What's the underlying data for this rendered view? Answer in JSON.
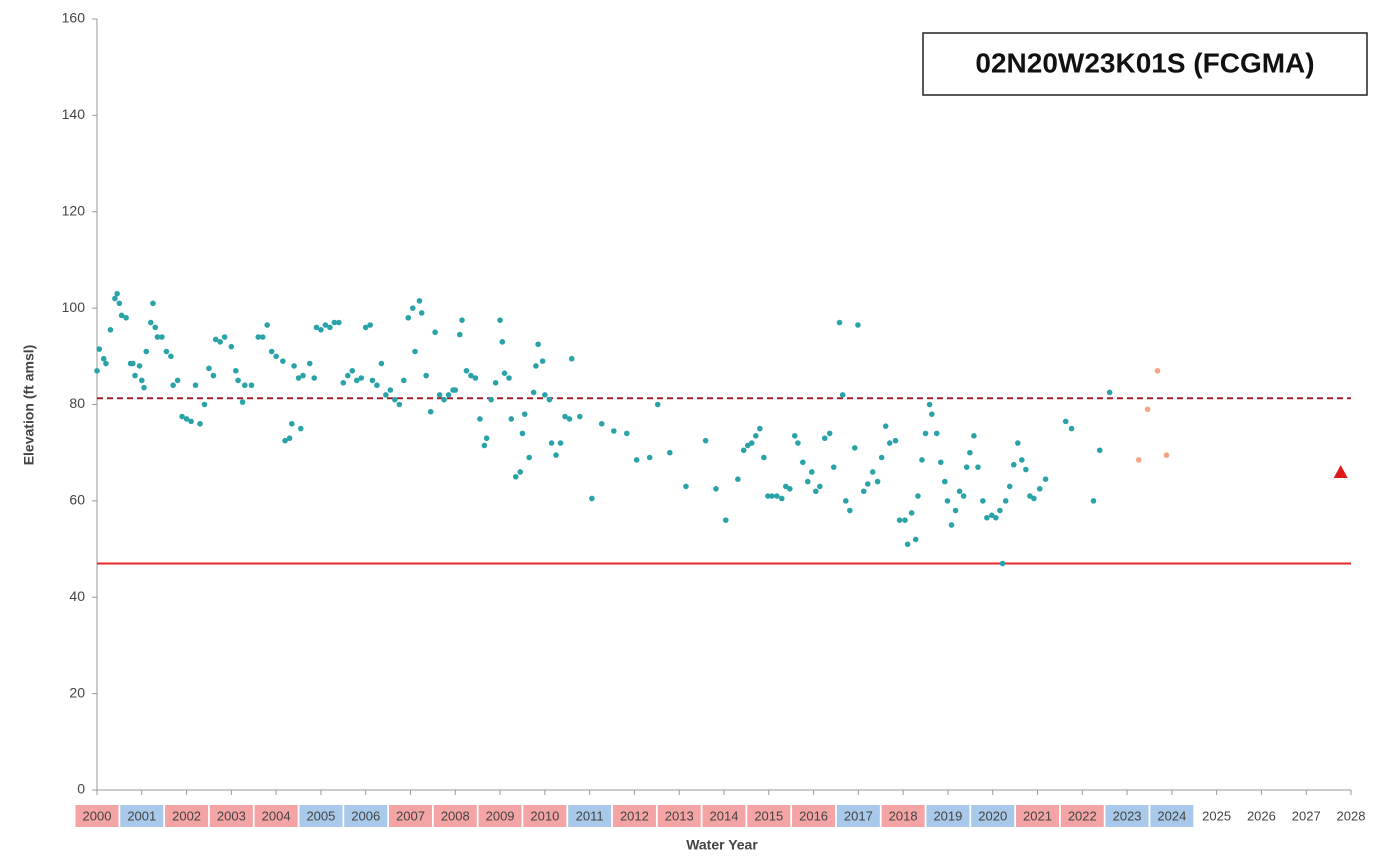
{
  "chart_data": {
    "type": "scatter",
    "title": "02N20W23K01S (FCGMA)",
    "ylabel": "Elevation (ft amsl)",
    "xlabel": "Water Year",
    "xlim": [
      2000,
      2028
    ],
    "ylim": [
      0,
      160
    ],
    "yticks": [
      0,
      20,
      40,
      60,
      80,
      100,
      120,
      140,
      160
    ],
    "xticks": [
      2000,
      2001,
      2002,
      2003,
      2004,
      2005,
      2006,
      2007,
      2008,
      2009,
      2010,
      2011,
      2012,
      2013,
      2014,
      2015,
      2016,
      2017,
      2018,
      2019,
      2020,
      2021,
      2022,
      2023,
      2024,
      2025,
      2026,
      2027,
      2028
    ],
    "xtick_backgrounds": [
      "#f4a4a4",
      "#a9c9ea",
      "#f4a4a4",
      "#f4a4a4",
      "#f4a4a4",
      "#a9c9ea",
      "#a9c9ea",
      "#f4a4a4",
      "#f4a4a4",
      "#f4a4a4",
      "#f4a4a4",
      "#a9c9ea",
      "#f4a4a4",
      "#f4a4a4",
      "#f4a4a4",
      "#f4a4a4",
      "#f4a4a4",
      "#a9c9ea",
      "#f4a4a4",
      "#a9c9ea",
      "#a9c9ea",
      "#f4a4a4",
      "#f4a4a4",
      "#a9c9ea",
      "#a9c9ea",
      null,
      null,
      null,
      null
    ],
    "grid": false,
    "reference_lines": [
      {
        "value": 81.3,
        "color": "#a3202a",
        "style": "dashed"
      },
      {
        "value": 47,
        "color": "#e8282a",
        "style": "solid"
      }
    ],
    "series": [
      {
        "color": "#2aa3a8",
        "marker": "circle",
        "x": [
          2000.0,
          2000.05,
          2000.15,
          2000.2,
          2000.3,
          2000.4,
          2000.45,
          2000.5,
          2000.55,
          2000.65,
          2000.75,
          2000.8,
          2000.85,
          2000.95,
          2001.0,
          2001.05,
          2001.1,
          2001.2,
          2001.25,
          2001.3,
          2001.35,
          2001.45,
          2001.55,
          2001.65,
          2001.7,
          2001.8,
          2001.9,
          2002.0,
          2002.1,
          2002.2,
          2002.3,
          2002.4,
          2002.5,
          2002.6,
          2002.65,
          2002.75,
          2002.85,
          2003.0,
          2003.1,
          2003.15,
          2003.25,
          2003.3,
          2003.45,
          2003.6,
          2003.7,
          2003.8,
          2003.9,
          2004.0,
          2004.15,
          2004.2,
          2004.3,
          2004.35,
          2004.4,
          2004.5,
          2004.55,
          2004.6,
          2004.75,
          2004.85,
          2004.9,
          2005.0,
          2005.1,
          2005.2,
          2005.3,
          2005.4,
          2005.5,
          2005.6,
          2005.7,
          2005.8,
          2005.9,
          2006.0,
          2006.1,
          2006.15,
          2006.25,
          2006.35,
          2006.45,
          2006.55,
          2006.65,
          2006.75,
          2006.85,
          2006.95,
          2007.05,
          2007.1,
          2007.2,
          2007.25,
          2007.35,
          2007.45,
          2007.55,
          2007.65,
          2007.75,
          2007.85,
          2007.95,
          2008.0,
          2008.1,
          2008.15,
          2008.25,
          2008.35,
          2008.45,
          2008.55,
          2008.65,
          2008.7,
          2008.8,
          2008.9,
          2009.0,
          2009.05,
          2009.1,
          2009.2,
          2009.25,
          2009.35,
          2009.45,
          2009.5,
          2009.55,
          2009.65,
          2009.75,
          2009.8,
          2009.85,
          2009.95,
          2010.0,
          2010.1,
          2010.15,
          2010.25,
          2010.35,
          2010.45,
          2010.55,
          2010.6,
          2010.78,
          2011.05,
          2011.27,
          2011.54,
          2011.83,
          2012.05,
          2012.34,
          2012.52,
          2012.79,
          2013.15,
          2013.59,
          2013.82,
          2014.04,
          2014.31,
          2014.44,
          2014.53,
          2014.62,
          2014.71,
          2014.8,
          2014.89,
          2014.98,
          2015.07,
          2015.18,
          2015.29,
          2015.38,
          2015.47,
          2015.58,
          2015.65,
          2015.76,
          2015.87,
          2015.96,
          2016.05,
          2016.14,
          2016.25,
          2016.36,
          2016.45,
          2016.58,
          2016.65,
          2016.72,
          2016.81,
          2016.92,
          2016.99,
          2017.12,
          2017.21,
          2017.32,
          2017.43,
          2017.52,
          2017.61,
          2017.7,
          2017.83,
          2017.92,
          2018.04,
          2018.1,
          2018.19,
          2018.28,
          2018.33,
          2018.42,
          2018.5,
          2018.59,
          2018.64,
          2018.75,
          2018.84,
          2018.93,
          2018.99,
          2019.08,
          2019.17,
          2019.26,
          2019.35,
          2019.42,
          2019.49,
          2019.58,
          2019.67,
          2019.78,
          2019.87,
          2019.98,
          2020.07,
          2020.16,
          2020.22,
          2020.29,
          2020.38,
          2020.47,
          2020.56,
          2020.65,
          2020.74,
          2020.83,
          2020.92,
          2021.05,
          2021.18,
          2021.63,
          2021.76,
          2022.25,
          2022.39,
          2022.61
        ],
        "values": [
          87,
          91.5,
          89.5,
          88.5,
          95.5,
          102,
          103,
          101,
          98.5,
          98,
          88.5,
          88.5,
          86,
          88,
          85,
          83.5,
          91,
          97,
          101,
          96,
          94,
          94,
          91,
          90,
          84,
          85,
          77.5,
          77,
          76.5,
          84,
          76,
          80,
          87.5,
          86,
          93.5,
          93,
          94,
          92,
          87,
          85,
          80.5,
          84,
          84,
          94,
          94,
          96.5,
          91,
          90,
          89,
          72.5,
          73,
          76,
          88,
          85.5,
          75,
          86,
          88.5,
          85.5,
          96,
          95.5,
          96.5,
          96,
          97,
          97,
          84.5,
          86,
          87,
          85,
          85.5,
          96,
          96.5,
          85,
          84,
          88.5,
          82,
          83,
          81,
          80,
          85,
          98,
          100,
          91,
          101.5,
          99,
          86,
          78.5,
          95,
          82,
          81,
          82,
          83,
          83,
          94.5,
          97.5,
          87,
          86,
          85.5,
          77,
          71.5,
          73,
          81,
          84.5,
          97.5,
          93,
          86.5,
          85.5,
          77,
          65,
          66,
          74,
          78,
          69,
          82.5,
          88,
          92.5,
          89,
          82,
          81,
          72,
          69.5,
          72,
          77.5,
          77,
          89.5,
          77.5,
          60.5,
          76,
          74.5,
          74,
          68.5,
          69,
          80,
          70,
          63,
          72.5,
          62.5,
          56,
          64.5,
          70.5,
          71.5,
          72,
          73.5,
          75,
          69,
          61,
          61,
          61,
          60.5,
          63,
          62.5,
          73.5,
          72,
          68,
          64,
          66,
          62,
          63,
          73,
          74,
          67,
          97,
          82,
          60,
          58,
          71,
          96.5,
          62,
          63.5,
          66,
          64,
          69,
          75.5,
          72,
          72.5,
          56,
          56,
          51,
          57.5,
          52,
          61,
          68.5,
          74,
          80,
          78,
          74,
          68,
          64,
          60,
          55,
          58,
          62,
          61,
          67,
          70,
          73.5,
          67,
          60,
          56.5,
          57,
          56.5,
          58,
          47,
          60,
          63,
          67.5,
          72,
          68.5,
          66.5,
          61,
          60.5,
          62.5,
          64.5,
          76.5,
          75,
          60,
          70.5,
          82.5
        ]
      },
      {
        "color": "#f4a582",
        "marker": "circle",
        "x": [
          2023.26,
          2023.46,
          2023.68,
          2023.88
        ],
        "values": [
          68.5,
          79,
          87,
          69.5
        ]
      },
      {
        "color": "#e01a1a",
        "marker": "triangle",
        "x": [
          2027.77
        ],
        "values": [
          66
        ]
      }
    ]
  }
}
